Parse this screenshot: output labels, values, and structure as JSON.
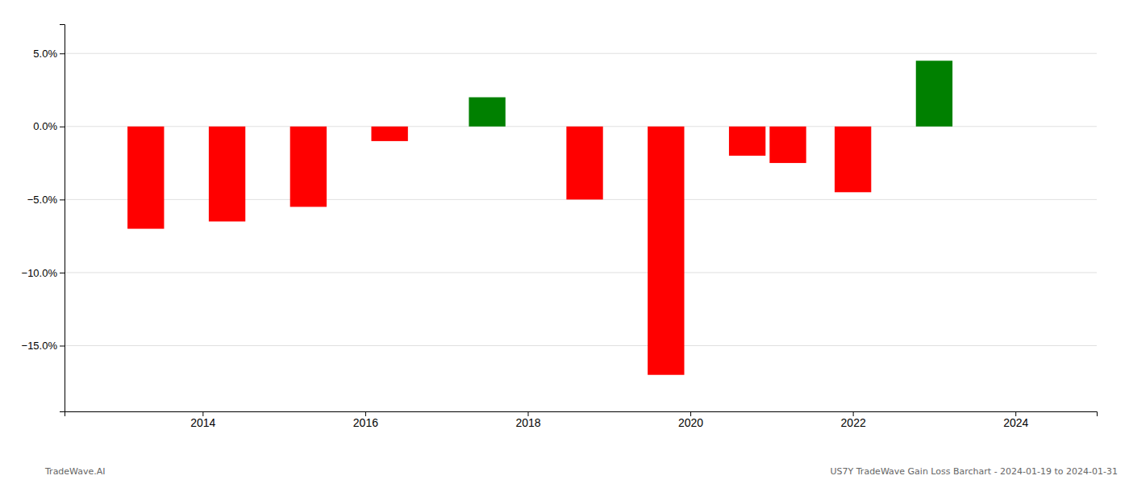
{
  "chart_data": {
    "type": "bar",
    "x": [
      2013.3,
      2014.3,
      2015.3,
      2016.3,
      2017.5,
      2018.7,
      2019.7,
      2020.7,
      2021.2,
      2022.0,
      2023.0
    ],
    "values": [
      -7.0,
      -6.5,
      -5.5,
      -1.0,
      2.0,
      -5.0,
      -17.0,
      -2.0,
      -2.5,
      -4.5,
      4.5
    ],
    "colors": [
      "#ff0000",
      "#ff0000",
      "#ff0000",
      "#ff0000",
      "#008000",
      "#ff0000",
      "#ff0000",
      "#ff0000",
      "#ff0000",
      "#ff0000",
      "#008000"
    ],
    "xlim": [
      2012.3,
      2025.0
    ],
    "xticks": [
      2014,
      2016,
      2018,
      2020,
      2022,
      2024
    ],
    "ylim": [
      -19.5,
      7.0
    ],
    "yticks": [
      {
        "value": 5.0,
        "label": "5.0%"
      },
      {
        "value": 0.0,
        "label": "0.0%"
      },
      {
        "value": -5.0,
        "label": "−5.0%"
      },
      {
        "value": -10.0,
        "label": "−10.0%"
      },
      {
        "value": -15.0,
        "label": "−15.0%"
      }
    ],
    "grid": true,
    "annotations": [
      {
        "text": "TradeWave.AI"
      },
      {
        "text": "US7Y TradeWave Gain Loss Barchart - 2024-01-19 to 2024-01-31"
      }
    ]
  }
}
